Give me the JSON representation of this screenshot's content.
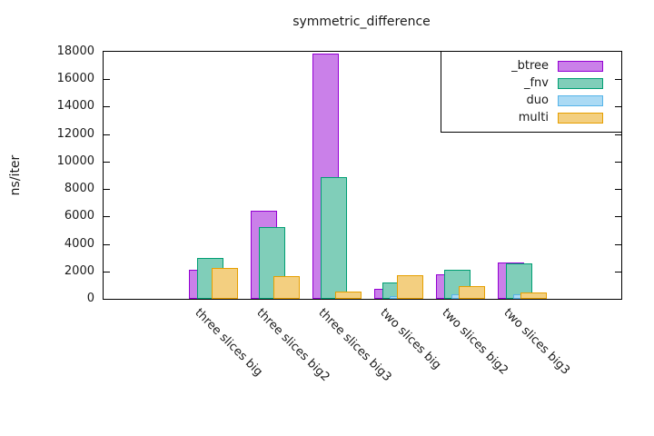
{
  "title": "symmetric_difference",
  "ylabel": "ns/iter",
  "chart_data": {
    "type": "bar",
    "title": "symmetric_difference",
    "xlabel": "",
    "ylabel": "ns/iter",
    "ylim": [
      0,
      18000
    ],
    "ytick_step": 2000,
    "grid": false,
    "legend_position": "top-right-inside",
    "categories": [
      "three slices big",
      "three slices big2",
      "three slices big3",
      "two slices big",
      "two slices big2",
      "two slices big3"
    ],
    "series": [
      {
        "name": "_btree",
        "color": "#9400d3",
        "fill": "#ca80e9",
        "values": [
          2100,
          6400,
          17900,
          700,
          1800,
          2650
        ]
      },
      {
        "name": "_fnv",
        "color": "#009e73",
        "fill": "#80ceb9",
        "values": [
          3000,
          5250,
          8900,
          1200,
          2100,
          2550
        ]
      },
      {
        "name": "duo",
        "color": "#56b4e9",
        "fill": "#abdaf4",
        "values": [
          0,
          0,
          0,
          200,
          350,
          300
        ]
      },
      {
        "name": "multi",
        "color": "#e69f00",
        "fill": "#f3cf80",
        "values": [
          2250,
          1650,
          500,
          1750,
          900,
          450
        ]
      }
    ]
  }
}
